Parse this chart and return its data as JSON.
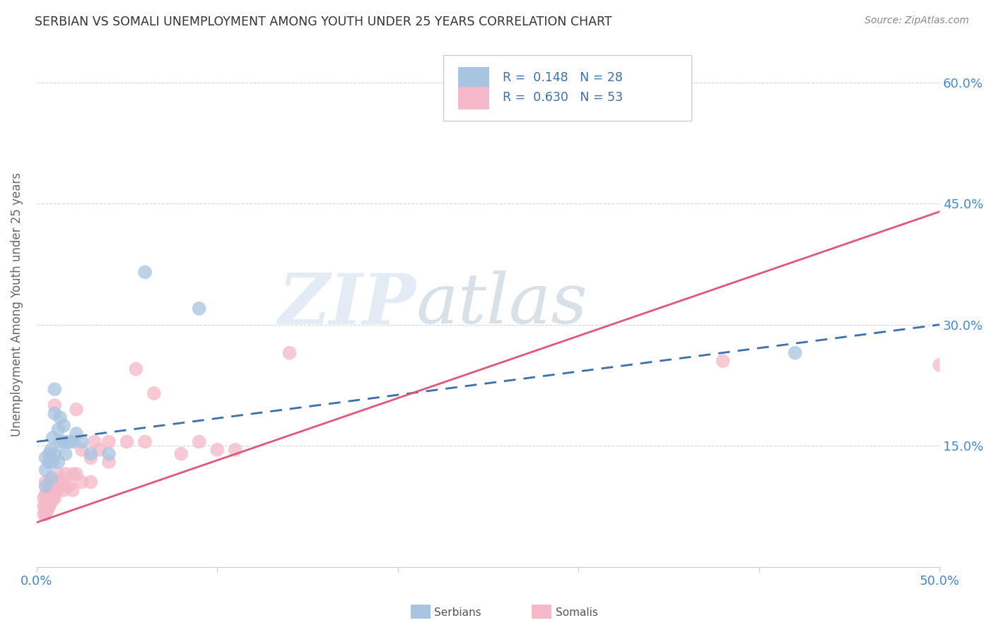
{
  "title": "SERBIAN VS SOMALI UNEMPLOYMENT AMONG YOUTH UNDER 25 YEARS CORRELATION CHART",
  "source": "Source: ZipAtlas.com",
  "ylabel": "Unemployment Among Youth under 25 years",
  "xlim": [
    0.0,
    0.5
  ],
  "ylim": [
    0.0,
    0.65
  ],
  "xticks": [
    0.0,
    0.1,
    0.2,
    0.3,
    0.4,
    0.5
  ],
  "yticks": [
    0.0,
    0.15,
    0.3,
    0.45,
    0.6
  ],
  "ytick_labels": [
    "",
    "15.0%",
    "30.0%",
    "45.0%",
    "60.0%"
  ],
  "xtick_labels": [
    "0.0%",
    "",
    "",
    "",
    "",
    "50.0%"
  ],
  "R_serbian": 0.148,
  "N_serbian": 28,
  "R_somali": 0.63,
  "N_somali": 53,
  "serbian_color": "#a8c4e0",
  "somali_color": "#f4b8c8",
  "serbian_line_color": "#3b6faf",
  "somali_line_color": "#e05878",
  "watermark_zip": "ZIP",
  "watermark_atlas": "atlas",
  "serbian_x": [
    0.005,
    0.005,
    0.005,
    0.007,
    0.007,
    0.008,
    0.008,
    0.009,
    0.009,
    0.01,
    0.01,
    0.01,
    0.012,
    0.012,
    0.013,
    0.013,
    0.015,
    0.015,
    0.016,
    0.018,
    0.02,
    0.022,
    0.025,
    0.03,
    0.04,
    0.06,
    0.09,
    0.42
  ],
  "serbian_y": [
    0.1,
    0.12,
    0.135,
    0.13,
    0.14,
    0.11,
    0.145,
    0.13,
    0.16,
    0.14,
    0.19,
    0.22,
    0.13,
    0.17,
    0.155,
    0.185,
    0.155,
    0.175,
    0.14,
    0.155,
    0.155,
    0.165,
    0.155,
    0.14,
    0.14,
    0.365,
    0.32,
    0.265
  ],
  "somali_x": [
    0.004,
    0.004,
    0.004,
    0.005,
    0.005,
    0.005,
    0.005,
    0.006,
    0.006,
    0.006,
    0.007,
    0.007,
    0.007,
    0.008,
    0.008,
    0.008,
    0.009,
    0.009,
    0.01,
    0.01,
    0.01,
    0.01,
    0.012,
    0.012,
    0.012,
    0.014,
    0.015,
    0.015,
    0.016,
    0.018,
    0.02,
    0.02,
    0.022,
    0.022,
    0.025,
    0.025,
    0.03,
    0.03,
    0.032,
    0.035,
    0.04,
    0.04,
    0.05,
    0.055,
    0.06,
    0.065,
    0.08,
    0.09,
    0.1,
    0.11,
    0.14,
    0.38,
    0.5
  ],
  "somali_y": [
    0.065,
    0.075,
    0.085,
    0.065,
    0.075,
    0.09,
    0.105,
    0.07,
    0.085,
    0.095,
    0.075,
    0.09,
    0.1,
    0.08,
    0.095,
    0.105,
    0.085,
    0.095,
    0.085,
    0.095,
    0.105,
    0.2,
    0.095,
    0.105,
    0.115,
    0.1,
    0.095,
    0.105,
    0.115,
    0.1,
    0.095,
    0.115,
    0.115,
    0.195,
    0.105,
    0.145,
    0.105,
    0.135,
    0.155,
    0.145,
    0.13,
    0.155,
    0.155,
    0.245,
    0.155,
    0.215,
    0.14,
    0.155,
    0.145,
    0.145,
    0.265,
    0.255,
    0.25
  ]
}
